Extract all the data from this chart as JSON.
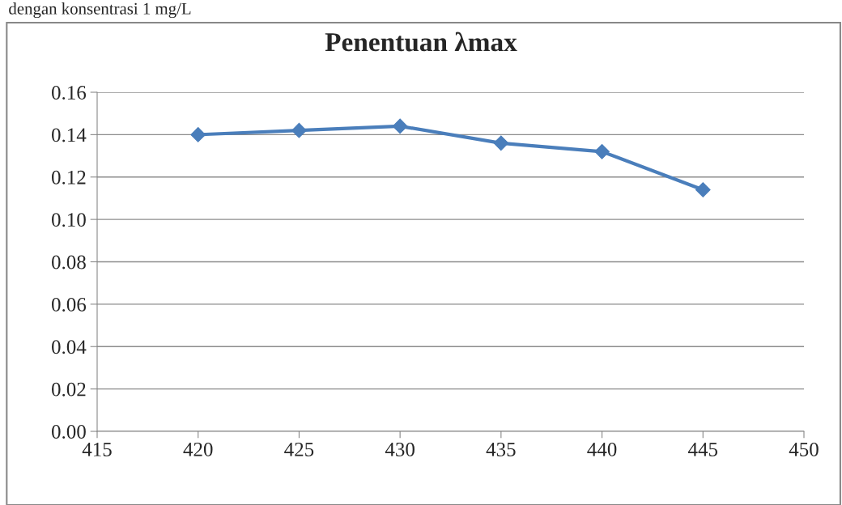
{
  "chart_data": {
    "type": "line",
    "title": "Penentuan λmax",
    "annotations": [
      "dengan konsentrasi 1 mg/L"
    ],
    "x": [
      420,
      425,
      430,
      435,
      440,
      445
    ],
    "series": [
      {
        "color": "#4a7ebb",
        "values": [
          0.14,
          0.142,
          0.144,
          0.136,
          0.132,
          0.114
        ]
      }
    ],
    "xlim": [
      415,
      450
    ],
    "xticks": [
      415,
      420,
      425,
      430,
      435,
      440,
      445,
      450
    ],
    "ylim": [
      0,
      0.16
    ],
    "yticks": [
      {
        "value": 0,
        "label": "0.00"
      },
      {
        "value": 0.02,
        "label": "0.02"
      },
      {
        "value": 0.04,
        "label": "0.04"
      },
      {
        "value": 0.06,
        "label": "0.06"
      },
      {
        "value": 0.08,
        "label": "0.08"
      },
      {
        "value": 0.1,
        "label": "0.10"
      },
      {
        "value": 0.12,
        "label": "0.12"
      },
      {
        "value": 0.14,
        "label": "0.14"
      },
      {
        "value": 0.16,
        "label": "0.16"
      }
    ],
    "grid": "y",
    "marker": "diamond",
    "line_style": "solid",
    "legend": false
  }
}
